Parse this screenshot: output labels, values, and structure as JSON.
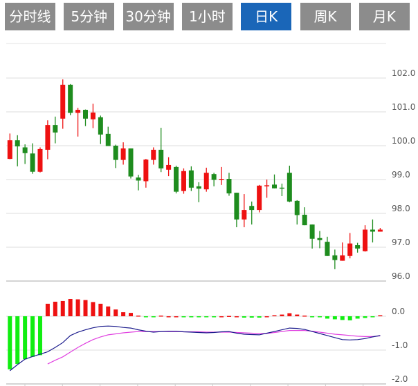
{
  "tabs": [
    {
      "label": "分时线",
      "active": false
    },
    {
      "label": "5分钟",
      "active": false
    },
    {
      "label": "30分钟",
      "active": false
    },
    {
      "label": "1小时",
      "active": false
    },
    {
      "label": "日K",
      "active": true
    },
    {
      "label": "周K",
      "active": false
    },
    {
      "label": "月K",
      "active": false
    }
  ],
  "colors": {
    "up": "#ee1111",
    "down": "#1e8c1e",
    "macd_up": "#ee1111",
    "macd_down": "#11ee11",
    "dif": "#1a1a8c",
    "dea": "#e040e0",
    "active_tab": "#1a66b8",
    "tab": "#8c8c8c",
    "grid": "#dddddd"
  },
  "chart_data": [
    {
      "type": "candlestick",
      "ylim": [
        96,
        103
      ],
      "yticks": [
        "102.0",
        "101.0",
        "100.0",
        "99.0",
        "98.0",
        "97.0",
        "96.0"
      ],
      "grid": true,
      "ohlc": [
        [
          99.61,
          100.36,
          99.6,
          100.16
        ],
        [
          100.16,
          100.31,
          99.39,
          99.98
        ],
        [
          99.95,
          100.04,
          99.46,
          99.78
        ],
        [
          99.77,
          100.07,
          99.17,
          99.23
        ],
        [
          99.23,
          99.95,
          99.21,
          99.9
        ],
        [
          99.88,
          100.75,
          99.6,
          100.61
        ],
        [
          100.61,
          100.86,
          100.07,
          100.39
        ],
        [
          100.8,
          101.96,
          100.5,
          101.8
        ],
        [
          101.8,
          101.82,
          100.9,
          100.97
        ],
        [
          100.97,
          101.12,
          100.27,
          101.06
        ],
        [
          101.06,
          101.07,
          100.58,
          100.8
        ],
        [
          100.78,
          101.24,
          100.52,
          100.98
        ],
        [
          100.84,
          100.89,
          100.05,
          100.33
        ],
        [
          100.35,
          100.56,
          99.99,
          99.99
        ],
        [
          100.0,
          100.03,
          99.34,
          99.58
        ],
        [
          99.58,
          100.1,
          99.44,
          99.92
        ],
        [
          99.92,
          99.92,
          99.03,
          99.09
        ],
        [
          99.06,
          99.14,
          98.68,
          98.97
        ],
        [
          98.95,
          99.61,
          98.76,
          99.59
        ],
        [
          99.58,
          99.95,
          99.44,
          99.88
        ],
        [
          99.88,
          100.53,
          99.22,
          99.33
        ],
        [
          99.29,
          99.66,
          99.1,
          99.43
        ],
        [
          99.37,
          99.41,
          98.59,
          98.64
        ],
        [
          98.66,
          99.33,
          98.58,
          99.25
        ],
        [
          99.27,
          99.39,
          98.66,
          98.76
        ],
        [
          98.8,
          98.92,
          98.33,
          98.73
        ],
        [
          98.71,
          99.35,
          98.64,
          99.2
        ],
        [
          99.16,
          99.2,
          98.8,
          98.99
        ],
        [
          98.99,
          99.37,
          98.84,
          99.02
        ],
        [
          99.02,
          99.2,
          98.52,
          98.59
        ],
        [
          98.61,
          98.61,
          97.59,
          97.82
        ],
        [
          97.82,
          98.57,
          97.59,
          98.1
        ],
        [
          98.22,
          98.35,
          97.67,
          98.1
        ],
        [
          98.1,
          98.84,
          98.03,
          98.82
        ],
        [
          98.8,
          99.0,
          98.46,
          98.83
        ],
        [
          98.85,
          99.15,
          98.74,
          98.74
        ],
        [
          98.76,
          98.88,
          98.51,
          98.74
        ],
        [
          99.2,
          99.41,
          98.33,
          98.35
        ],
        [
          98.37,
          98.39,
          97.67,
          97.95
        ],
        [
          97.96,
          98.18,
          97.65,
          97.65
        ],
        [
          97.67,
          97.67,
          96.96,
          97.25
        ],
        [
          97.27,
          97.48,
          96.97,
          97.21
        ],
        [
          97.16,
          97.31,
          96.74,
          96.74
        ],
        [
          96.76,
          96.93,
          96.35,
          96.62
        ],
        [
          96.6,
          97.14,
          96.6,
          96.76
        ],
        [
          96.74,
          97.42,
          96.67,
          97.11
        ],
        [
          97.06,
          97.13,
          96.84,
          96.96
        ],
        [
          96.88,
          97.65,
          96.87,
          97.52
        ],
        [
          97.52,
          97.82,
          97.14,
          97.46
        ],
        [
          97.46,
          97.57,
          97.46,
          97.52
        ]
      ]
    },
    {
      "type": "macd",
      "ylim": [
        -2,
        0.5
      ],
      "yticks": [
        "0.0",
        "-1.0",
        "-2.0"
      ],
      "grid": true,
      "histogram": [
        -1.57,
        -1.41,
        -1.27,
        -1.2,
        -1.15,
        0.37,
        0.43,
        0.45,
        0.51,
        0.5,
        0.48,
        0.42,
        0.37,
        0.29,
        0.2,
        0.12,
        0.1,
        0.02,
        -0.01,
        -0.01,
        0.02,
        0,
        0,
        -0.02,
        -0.02,
        -0.02,
        -0.02,
        -0.01,
        0,
        0.01,
        0,
        -0.04,
        -0.04,
        -0.04,
        0,
        0.03,
        0.05,
        0.09,
        0.05,
        0.02,
        -0.01,
        -0.03,
        -0.07,
        -0.09,
        -0.11,
        -0.12,
        -0.07,
        -0.05,
        -0.01,
        0.03
      ],
      "dif": [
        -1.61,
        -1.43,
        -1.27,
        -1.19,
        -1.12,
        -1.05,
        -0.92,
        -0.78,
        -0.57,
        -0.47,
        -0.4,
        -0.34,
        -0.3,
        -0.29,
        -0.3,
        -0.33,
        -0.35,
        -0.4,
        -0.44,
        -0.47,
        -0.45,
        -0.44,
        -0.44,
        -0.46,
        -0.47,
        -0.48,
        -0.49,
        -0.48,
        -0.46,
        -0.45,
        -0.5,
        -0.53,
        -0.54,
        -0.55,
        -0.5,
        -0.45,
        -0.4,
        -0.35,
        -0.36,
        -0.39,
        -0.45,
        -0.51,
        -0.57,
        -0.63,
        -0.69,
        -0.7,
        -0.69,
        -0.66,
        -0.61,
        -0.57
      ],
      "dea": [
        null,
        null,
        null,
        null,
        null,
        -1.41,
        -1.3,
        -1.2,
        -1.06,
        -0.92,
        -0.8,
        -0.69,
        -0.61,
        -0.55,
        -0.52,
        -0.49,
        -0.47,
        -0.45,
        -0.45,
        -0.45,
        -0.45,
        -0.45,
        -0.45,
        -0.46,
        -0.46,
        -0.46,
        -0.47,
        -0.47,
        -0.47,
        -0.47,
        -0.48,
        -0.49,
        -0.5,
        -0.51,
        -0.51,
        -0.48,
        -0.45,
        -0.42,
        -0.42,
        -0.42,
        -0.44,
        -0.47,
        -0.5,
        -0.53,
        -0.55,
        -0.57,
        -0.59,
        -0.6,
        -0.6,
        -0.58
      ]
    }
  ]
}
